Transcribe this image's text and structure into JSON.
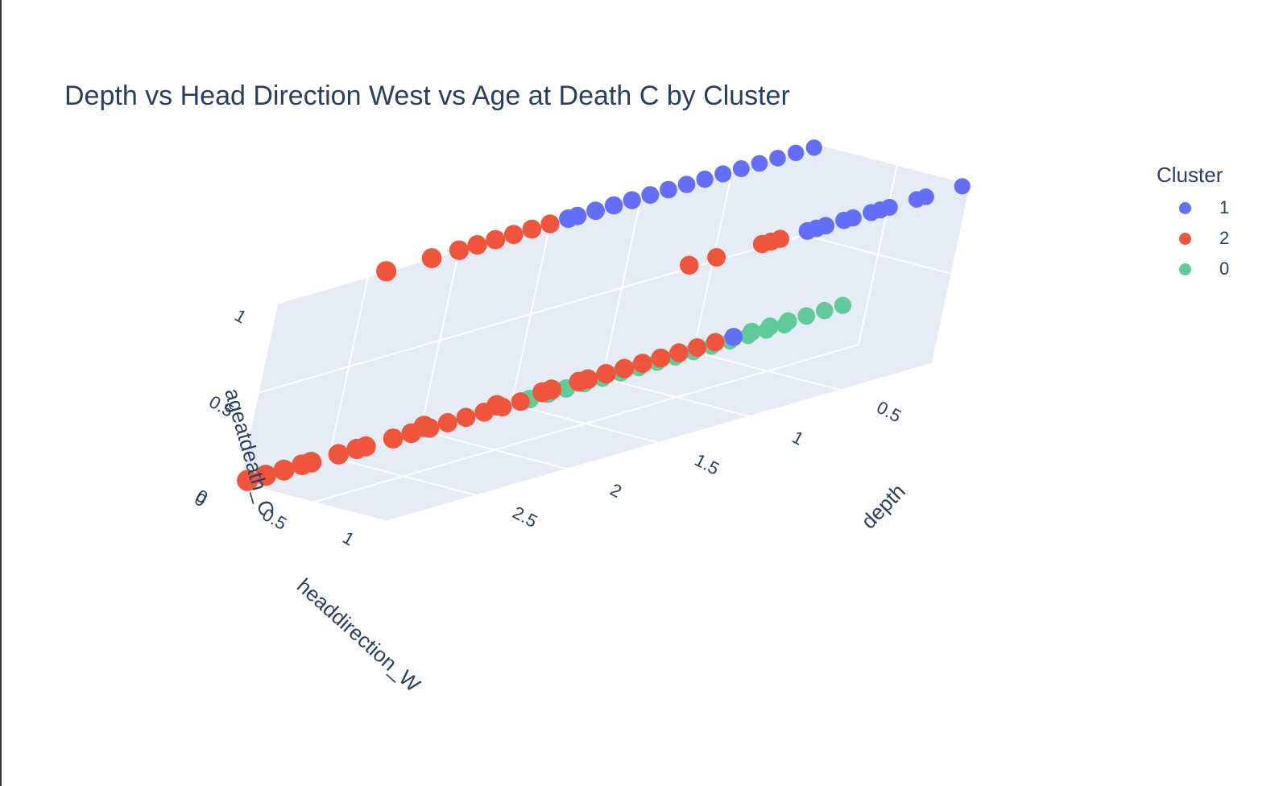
{
  "chart_data": {
    "type": "scatter",
    "title": "Depth vs Head Direction West vs Age at Death C by Cluster",
    "legend_title": "Cluster",
    "axes": {
      "x": {
        "label": "depth",
        "ticks": [
          "0.5",
          "1",
          "1.5",
          "2",
          "2.5"
        ],
        "range": [
          0,
          3
        ]
      },
      "y": {
        "label": "headdirection_W",
        "ticks": [
          "0",
          "0.5",
          "1"
        ],
        "range": [
          0,
          1
        ]
      },
      "z": {
        "label": "ageatdeath_C",
        "ticks": [
          "0",
          "0.5",
          "1"
        ],
        "range": [
          0,
          1
        ]
      }
    },
    "grid": true,
    "legend_position": "top-right",
    "series": [
      {
        "name": "1",
        "color": "#636efa",
        "points": [
          {
            "x": 0.05,
            "y": 0,
            "z": 1
          },
          {
            "x": 0.15,
            "y": 0,
            "z": 1
          },
          {
            "x": 0.25,
            "y": 0,
            "z": 1
          },
          {
            "x": 0.35,
            "y": 0,
            "z": 1
          },
          {
            "x": 0.45,
            "y": 0,
            "z": 1
          },
          {
            "x": 0.55,
            "y": 0,
            "z": 1
          },
          {
            "x": 0.65,
            "y": 0,
            "z": 1
          },
          {
            "x": 0.75,
            "y": 0,
            "z": 1
          },
          {
            "x": 0.85,
            "y": 0,
            "z": 1
          },
          {
            "x": 0.95,
            "y": 0,
            "z": 1
          },
          {
            "x": 1.05,
            "y": 0,
            "z": 1
          },
          {
            "x": 1.15,
            "y": 0,
            "z": 1
          },
          {
            "x": 1.25,
            "y": 0,
            "z": 1
          },
          {
            "x": 1.35,
            "y": 0,
            "z": 1
          },
          {
            "x": 1.4,
            "y": 0,
            "z": 1
          },
          {
            "x": 0.05,
            "y": 1,
            "z": 1
          },
          {
            "x": 0.25,
            "y": 1,
            "z": 1
          },
          {
            "x": 0.3,
            "y": 1,
            "z": 1
          },
          {
            "x": 0.45,
            "y": 1,
            "z": 1
          },
          {
            "x": 0.5,
            "y": 1,
            "z": 1
          },
          {
            "x": 0.55,
            "y": 1,
            "z": 1
          },
          {
            "x": 0.65,
            "y": 1,
            "z": 1
          },
          {
            "x": 0.7,
            "y": 1,
            "z": 1
          },
          {
            "x": 0.8,
            "y": 1,
            "z": 1
          },
          {
            "x": 0.85,
            "y": 1,
            "z": 1
          },
          {
            "x": 0.9,
            "y": 1,
            "z": 1
          },
          {
            "x": 1.2,
            "y": 1,
            "z": 0.5
          },
          {
            "x": 1.1,
            "y": 0,
            "z": 0
          },
          {
            "x": 1.2,
            "y": 0,
            "z": 0
          },
          {
            "x": 1.3,
            "y": 0,
            "z": 0
          }
        ]
      },
      {
        "name": "2",
        "color": "#ef553b",
        "points": [
          {
            "x": 1.5,
            "y": 0,
            "z": 1
          },
          {
            "x": 1.6,
            "y": 0,
            "z": 1
          },
          {
            "x": 1.7,
            "y": 0,
            "z": 1
          },
          {
            "x": 1.8,
            "y": 0,
            "z": 1
          },
          {
            "x": 1.9,
            "y": 0,
            "z": 1
          },
          {
            "x": 2.0,
            "y": 0,
            "z": 1
          },
          {
            "x": 2.15,
            "y": 0,
            "z": 1
          },
          {
            "x": 2.4,
            "y": 0,
            "z": 1
          },
          {
            "x": 1.05,
            "y": 1,
            "z": 1
          },
          {
            "x": 1.1,
            "y": 1,
            "z": 1
          },
          {
            "x": 1.15,
            "y": 1,
            "z": 1
          },
          {
            "x": 1.4,
            "y": 1,
            "z": 1
          },
          {
            "x": 1.55,
            "y": 1,
            "z": 1
          },
          {
            "x": 1.3,
            "y": 1,
            "z": 0.5
          },
          {
            "x": 1.4,
            "y": 1,
            "z": 0.5
          },
          {
            "x": 1.5,
            "y": 1,
            "z": 0.5
          },
          {
            "x": 1.6,
            "y": 1,
            "z": 0.5
          },
          {
            "x": 1.7,
            "y": 1,
            "z": 0.5
          },
          {
            "x": 1.8,
            "y": 1,
            "z": 0.5
          },
          {
            "x": 1.9,
            "y": 1,
            "z": 0.5
          },
          {
            "x": 2.0,
            "y": 1,
            "z": 0.5
          },
          {
            "x": 2.05,
            "y": 1,
            "z": 0.5
          },
          {
            "x": 2.2,
            "y": 1,
            "z": 0.5
          },
          {
            "x": 2.25,
            "y": 1,
            "z": 0.5
          },
          {
            "x": 2.5,
            "y": 1,
            "z": 0.5
          },
          {
            "x": 2.9,
            "y": 1,
            "z": 0.5
          },
          {
            "x": 1.45,
            "y": 0,
            "z": 0
          },
          {
            "x": 1.55,
            "y": 0,
            "z": 0
          },
          {
            "x": 1.65,
            "y": 0,
            "z": 0
          },
          {
            "x": 1.75,
            "y": 0,
            "z": 0
          },
          {
            "x": 1.85,
            "y": 0,
            "z": 0
          },
          {
            "x": 1.95,
            "y": 0,
            "z": 0
          },
          {
            "x": 2.05,
            "y": 0,
            "z": 0
          },
          {
            "x": 2.15,
            "y": 0,
            "z": 0
          },
          {
            "x": 2.3,
            "y": 0,
            "z": 0
          },
          {
            "x": 2.35,
            "y": 0,
            "z": 0
          },
          {
            "x": 2.45,
            "y": 0,
            "z": 0
          },
          {
            "x": 2.6,
            "y": 0,
            "z": 0
          },
          {
            "x": 2.65,
            "y": 0,
            "z": 0
          },
          {
            "x": 2.75,
            "y": 0,
            "z": 0
          },
          {
            "x": 2.85,
            "y": 0,
            "z": 0
          },
          {
            "x": 2.95,
            "y": 0,
            "z": 0
          }
        ]
      },
      {
        "name": "0",
        "color": "#00cc96",
        "points": [
          {
            "x": 0.6,
            "y": 1,
            "z": 0.5
          },
          {
            "x": 0.7,
            "y": 1,
            "z": 0.5
          },
          {
            "x": 0.8,
            "y": 1,
            "z": 0.5
          },
          {
            "x": 0.9,
            "y": 1,
            "z": 0.5
          },
          {
            "x": 1.0,
            "y": 1,
            "z": 0.5
          },
          {
            "x": 1.1,
            "y": 1,
            "z": 0.5
          },
          {
            "x": 0.0,
            "y": 0,
            "z": 0
          },
          {
            "x": 0.1,
            "y": 0,
            "z": 0
          },
          {
            "x": 0.2,
            "y": 0,
            "z": 0
          },
          {
            "x": 0.3,
            "y": 0,
            "z": 0
          },
          {
            "x": 0.4,
            "y": 0,
            "z": 0
          },
          {
            "x": 0.5,
            "y": 0,
            "z": 0
          },
          {
            "x": 0.6,
            "y": 0,
            "z": 0
          },
          {
            "x": 0.7,
            "y": 0,
            "z": 0
          },
          {
            "x": 0.8,
            "y": 0,
            "z": 0
          },
          {
            "x": 0.9,
            "y": 0,
            "z": 0
          },
          {
            "x": 1.0,
            "y": 0,
            "z": 0
          },
          {
            "x": 1.1,
            "y": 0,
            "z": 0
          },
          {
            "x": 1.2,
            "y": 0,
            "z": 0
          },
          {
            "x": 1.3,
            "y": 0,
            "z": 0
          },
          {
            "x": 1.4,
            "y": 0,
            "z": 0
          }
        ]
      }
    ]
  }
}
